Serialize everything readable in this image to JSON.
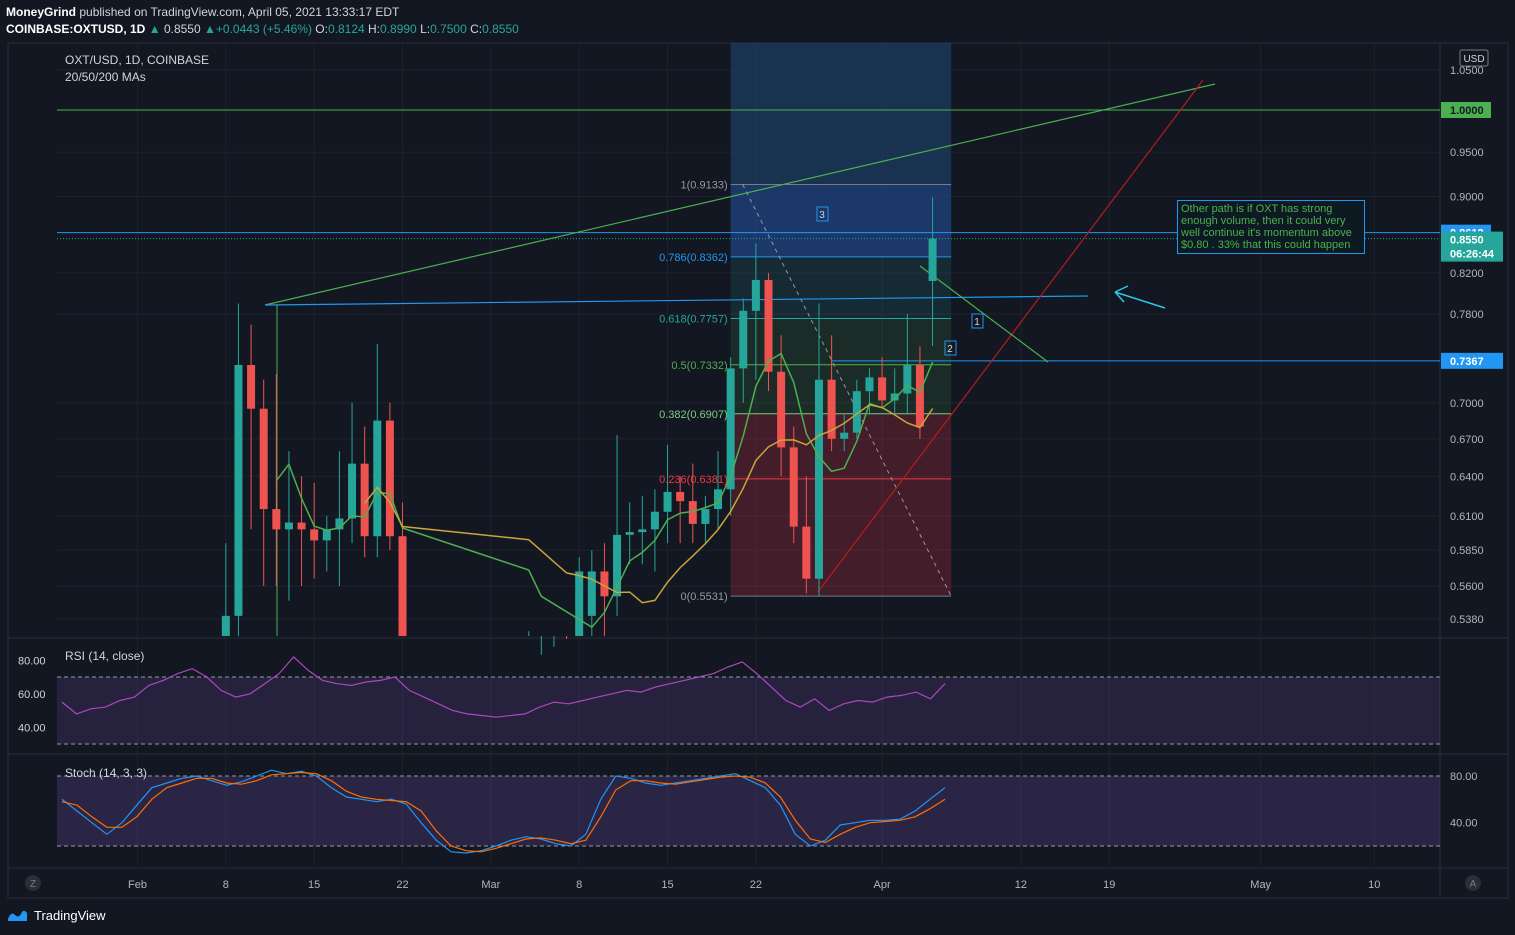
{
  "header": {
    "author": "MoneyGrind",
    "published": "published on TradingView.com, April 05, 2021 13:33:17 EDT",
    "symbol": "COINBASE:OXTUSD, 1D",
    "last": "0.8550",
    "change": "+0.0443 (+5.46%)",
    "o_label": "O:",
    "o": "0.8124",
    "h_label": "H:",
    "h": "0.8990",
    "l_label": "L:",
    "l": "0.7500",
    "c_label": "C:",
    "c": "0.8550"
  },
  "legend": {
    "title": "OXT/USD, 1D, COINBASE",
    "mas": "20/50/200 MAs",
    "rsi": "RSI (14, close)",
    "stoch": "Stoch (14, 3, 3)"
  },
  "currency": "USD",
  "note": "Other path is if OXT has strong enough volume, then it could very well continue it's momentum above $0.80 . 33% that this could happen",
  "brand": "TradingView",
  "colors": {
    "up": "#26a69a",
    "down": "#ef5350",
    "ma20": "#4caf50",
    "ma50": "#c9a53a",
    "background": "#131722"
  },
  "chart_data": [
    {
      "type": "candlestick",
      "title": "OXT/USD, 1D, COINBASE",
      "y_axis_ticks": [
        "1.0500",
        "0.9500",
        "0.9000",
        "0.8200",
        "0.7800",
        "0.7000",
        "0.6700",
        "0.6400",
        "0.6100",
        "0.5850",
        "0.5600",
        "0.5380"
      ],
      "x_axis_ticks": [
        "Feb",
        "8",
        "15",
        "22",
        "Mar",
        "8",
        "15",
        "22",
        "Apr",
        "12",
        "19",
        "May",
        "10"
      ],
      "y_scale": "log",
      "price_labels": [
        {
          "value": "1.0000",
          "color": "#4caf50"
        },
        {
          "value": "0.8612",
          "color": "#2196f3"
        },
        {
          "value": "0.8550",
          "color": "#26a69a"
        },
        {
          "value": "06:26:44",
          "color": "#26a69a"
        },
        {
          "value": "0.7367",
          "color": "#2196f3"
        }
      ],
      "fib_levels": [
        {
          "label": "1(0.9133)",
          "value": 0.9133
        },
        {
          "label": "0.786(0.8362)",
          "value": 0.8362
        },
        {
          "label": "0.618(0.7757)",
          "value": 0.7757
        },
        {
          "label": "0.5(0.7332)",
          "value": 0.7332
        },
        {
          "label": "0.382(0.6907)",
          "value": 0.6907
        },
        {
          "label": "0.236(0.6381)",
          "value": 0.6381
        },
        {
          "label": "0(0.5531)",
          "value": 0.5531
        }
      ],
      "markers": [
        "1",
        "2",
        "3"
      ],
      "candles": [
        {
          "d": "2021-02-08",
          "o": 0.52,
          "h": 0.59,
          "l": 0.49,
          "c": 0.54
        },
        {
          "d": "2021-02-09",
          "o": 0.54,
          "h": 0.79,
          "l": 0.52,
          "c": 0.733
        },
        {
          "d": "2021-02-10",
          "o": 0.733,
          "h": 0.77,
          "l": 0.6,
          "c": 0.695
        },
        {
          "d": "2021-02-11",
          "o": 0.695,
          "h": 0.72,
          "l": 0.56,
          "c": 0.615
        },
        {
          "d": "2021-02-12",
          "o": 0.615,
          "h": 0.725,
          "l": 0.56,
          "c": 0.6
        },
        {
          "d": "2021-02-13",
          "o": 0.6,
          "h": 0.66,
          "l": 0.55,
          "c": 0.605
        },
        {
          "d": "2021-02-14",
          "o": 0.605,
          "h": 0.64,
          "l": 0.56,
          "c": 0.6
        },
        {
          "d": "2021-02-15",
          "o": 0.6,
          "h": 0.635,
          "l": 0.565,
          "c": 0.592
        },
        {
          "d": "2021-02-16",
          "o": 0.592,
          "h": 0.61,
          "l": 0.57,
          "c": 0.6
        },
        {
          "d": "2021-02-17",
          "o": 0.6,
          "h": 0.66,
          "l": 0.56,
          "c": 0.608
        },
        {
          "d": "2021-02-18",
          "o": 0.608,
          "h": 0.7,
          "l": 0.59,
          "c": 0.65
        },
        {
          "d": "2021-02-19",
          "o": 0.65,
          "h": 0.68,
          "l": 0.58,
          "c": 0.595
        },
        {
          "d": "2021-02-20",
          "o": 0.595,
          "h": 0.752,
          "l": 0.58,
          "c": 0.685
        },
        {
          "d": "2021-02-21",
          "o": 0.685,
          "h": 0.7,
          "l": 0.585,
          "c": 0.595
        },
        {
          "d": "2021-02-22",
          "o": 0.595,
          "h": 0.62,
          "l": 0.46,
          "c": 0.48
        },
        {
          "d": "2021-03-04",
          "o": 0.495,
          "h": 0.53,
          "l": 0.48,
          "c": 0.5
        },
        {
          "d": "2021-03-05",
          "o": 0.5,
          "h": 0.515,
          "l": 0.49,
          "c": 0.505
        },
        {
          "d": "2021-03-06",
          "o": 0.505,
          "h": 0.52,
          "l": 0.495,
          "c": 0.51
        },
        {
          "d": "2021-03-07",
          "o": 0.51,
          "h": 0.525,
          "l": 0.49,
          "c": 0.508
        },
        {
          "d": "2021-03-08",
          "o": 0.508,
          "h": 0.58,
          "l": 0.495,
          "c": 0.57
        },
        {
          "d": "2021-03-09",
          "o": 0.54,
          "h": 0.585,
          "l": 0.52,
          "c": 0.57
        },
        {
          "d": "2021-03-10",
          "o": 0.57,
          "h": 0.59,
          "l": 0.525,
          "c": 0.553
        },
        {
          "d": "2021-03-11",
          "o": 0.553,
          "h": 0.673,
          "l": 0.54,
          "c": 0.596
        },
        {
          "d": "2021-03-12",
          "o": 0.596,
          "h": 0.62,
          "l": 0.575,
          "c": 0.598
        },
        {
          "d": "2021-03-13",
          "o": 0.598,
          "h": 0.625,
          "l": 0.575,
          "c": 0.6
        },
        {
          "d": "2021-03-14",
          "o": 0.6,
          "h": 0.63,
          "l": 0.57,
          "c": 0.613
        },
        {
          "d": "2021-03-15",
          "o": 0.613,
          "h": 0.665,
          "l": 0.59,
          "c": 0.628
        },
        {
          "d": "2021-03-16",
          "o": 0.628,
          "h": 0.64,
          "l": 0.59,
          "c": 0.621
        },
        {
          "d": "2021-03-17",
          "o": 0.621,
          "h": 0.65,
          "l": 0.59,
          "c": 0.604
        },
        {
          "d": "2021-03-18",
          "o": 0.604,
          "h": 0.625,
          "l": 0.59,
          "c": 0.615
        },
        {
          "d": "2021-03-19",
          "o": 0.615,
          "h": 0.66,
          "l": 0.6,
          "c": 0.63
        },
        {
          "d": "2021-03-20",
          "o": 0.63,
          "h": 0.74,
          "l": 0.61,
          "c": 0.73
        },
        {
          "d": "2021-03-21",
          "o": 0.73,
          "h": 0.795,
          "l": 0.7,
          "c": 0.783
        },
        {
          "d": "2021-03-22",
          "o": 0.783,
          "h": 0.85,
          "l": 0.72,
          "c": 0.813
        },
        {
          "d": "2021-03-23",
          "o": 0.813,
          "h": 0.82,
          "l": 0.71,
          "c": 0.727
        },
        {
          "d": "2021-03-24",
          "o": 0.727,
          "h": 0.76,
          "l": 0.64,
          "c": 0.663
        },
        {
          "d": "2021-03-25",
          "o": 0.663,
          "h": 0.68,
          "l": 0.59,
          "c": 0.602
        },
        {
          "d": "2021-03-26",
          "o": 0.602,
          "h": 0.64,
          "l": 0.555,
          "c": 0.565
        },
        {
          "d": "2021-03-27",
          "o": 0.565,
          "h": 0.79,
          "l": 0.553,
          "c": 0.72
        },
        {
          "d": "2021-03-28",
          "o": 0.72,
          "h": 0.76,
          "l": 0.66,
          "c": 0.67
        },
        {
          "d": "2021-03-29",
          "o": 0.67,
          "h": 0.69,
          "l": 0.66,
          "c": 0.675
        },
        {
          "d": "2021-03-30",
          "o": 0.675,
          "h": 0.72,
          "l": 0.67,
          "c": 0.71
        },
        {
          "d": "2021-03-31",
          "o": 0.71,
          "h": 0.73,
          "l": 0.69,
          "c": 0.722
        },
        {
          "d": "2021-04-01",
          "o": 0.722,
          "h": 0.74,
          "l": 0.695,
          "c": 0.702
        },
        {
          "d": "2021-04-02",
          "o": 0.702,
          "h": 0.73,
          "l": 0.69,
          "c": 0.708
        },
        {
          "d": "2021-04-03",
          "o": 0.708,
          "h": 0.78,
          "l": 0.69,
          "c": 0.733
        },
        {
          "d": "2021-04-04",
          "o": 0.733,
          "h": 0.75,
          "l": 0.67,
          "c": 0.68
        },
        {
          "d": "2021-04-05",
          "o": 0.812,
          "h": 0.899,
          "l": 0.75,
          "c": 0.855
        }
      ]
    },
    {
      "type": "line",
      "title": "RSI (14, close)",
      "y_axis_ticks": [
        "80.00",
        "60.00",
        "40.00"
      ],
      "bands": [
        70,
        30
      ],
      "values": [
        55,
        48,
        51,
        52,
        56,
        58,
        65,
        68,
        72,
        75,
        70,
        62,
        58,
        60,
        66,
        72,
        82,
        74,
        68,
        66,
        65,
        67,
        68,
        70,
        62,
        58,
        54,
        50,
        48,
        47,
        46,
        47,
        48,
        52,
        55,
        54,
        56,
        58,
        60,
        62,
        61,
        64,
        66,
        68,
        70,
        72,
        76,
        79,
        72,
        64,
        56,
        52,
        57,
        50,
        54,
        56,
        55,
        58,
        59,
        61,
        57,
        66
      ]
    },
    {
      "type": "line",
      "title": "Stoch (14, 3, 3)",
      "y_axis_ticks": [
        "80.00",
        "40.00"
      ],
      "bands": [
        80,
        20
      ],
      "series": [
        {
          "color": "#2196f3",
          "values": [
            60,
            50,
            40,
            30,
            40,
            55,
            70,
            74,
            78,
            80,
            76,
            72,
            75,
            80,
            85,
            82,
            84,
            80,
            70,
            62,
            60,
            58,
            60,
            56,
            40,
            25,
            15,
            14,
            16,
            20,
            25,
            28,
            26,
            22,
            20,
            30,
            60,
            80,
            78,
            74,
            72,
            74,
            76,
            78,
            80,
            82,
            76,
            70,
            55,
            30,
            20,
            25,
            38,
            40,
            42,
            42,
            43,
            50,
            60,
            70
          ]
        },
        {
          "color": "#ff6d00",
          "values": [
            58,
            55,
            45,
            36,
            36,
            45,
            60,
            70,
            74,
            78,
            78,
            74,
            73,
            76,
            81,
            82,
            83,
            82,
            76,
            67,
            62,
            60,
            59,
            58,
            50,
            33,
            20,
            16,
            15,
            18,
            22,
            26,
            27,
            25,
            22,
            25,
            45,
            68,
            76,
            76,
            74,
            73,
            75,
            77,
            79,
            80,
            79,
            74,
            62,
            42,
            26,
            23,
            30,
            36,
            40,
            41,
            42,
            45,
            52,
            60
          ]
        }
      ]
    }
  ]
}
